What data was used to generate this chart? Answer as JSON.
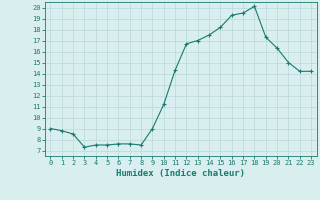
{
  "x": [
    0,
    1,
    2,
    3,
    4,
    5,
    6,
    7,
    8,
    9,
    10,
    11,
    12,
    13,
    14,
    15,
    16,
    17,
    18,
    19,
    20,
    21,
    22,
    23
  ],
  "y": [
    9.0,
    8.8,
    8.5,
    7.3,
    7.5,
    7.5,
    7.6,
    7.6,
    7.5,
    9.0,
    11.2,
    14.3,
    16.7,
    17.0,
    17.5,
    18.2,
    19.3,
    19.5,
    20.1,
    17.3,
    16.3,
    15.0,
    14.2,
    14.2
  ],
  "line_color": "#1a7a6e",
  "marker": "+",
  "marker_size": 3,
  "bg_color": "#d9eeee",
  "grid_color": "#b8d8d8",
  "xlabel": "Humidex (Indice chaleur)",
  "xlim": [
    -0.5,
    23.5
  ],
  "ylim": [
    6.5,
    20.5
  ],
  "yticks": [
    7,
    8,
    9,
    10,
    11,
    12,
    13,
    14,
    15,
    16,
    17,
    18,
    19,
    20
  ],
  "xticks": [
    0,
    1,
    2,
    3,
    4,
    5,
    6,
    7,
    8,
    9,
    10,
    11,
    12,
    13,
    14,
    15,
    16,
    17,
    18,
    19,
    20,
    21,
    22,
    23
  ],
  "tick_color": "#1a7a6e",
  "axis_color": "#1a7a6e",
  "label_color": "#1a7a6e"
}
